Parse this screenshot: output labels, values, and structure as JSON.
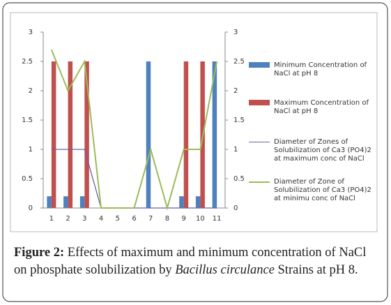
{
  "chart_data": {
    "type": "bar_line",
    "categories": [
      "1",
      "2",
      "3",
      "4",
      "5",
      "6",
      "7",
      "8",
      "9",
      "10",
      "11"
    ],
    "series": [
      {
        "name": "Minimum Concentration of NaCl at pH 8",
        "type": "bar",
        "color": "#4f81bd",
        "values": [
          0.2,
          0.2,
          0.2,
          0,
          0,
          0,
          2.5,
          0,
          0.2,
          0.2,
          2.5
        ]
      },
      {
        "name": "Maximum Concentration of NaCl at pH 8",
        "type": "bar",
        "color": "#c0504d",
        "values": [
          2.5,
          2.5,
          2.5,
          0,
          0,
          0,
          0,
          0,
          2.5,
          2.5,
          0
        ]
      },
      {
        "name": "Diameter of Zones of Solubilization of Ca3 (PO4)2 at maximum conc of NaCl",
        "type": "line",
        "axis": "y2",
        "color": "#6a5fa8",
        "values": [
          1,
          1,
          1,
          0,
          0,
          0,
          0,
          0,
          0,
          0,
          0
        ]
      },
      {
        "name": "Diameter of Zone of Solubilization of Ca3 (PO4)2 at minimu conc of NaCl",
        "type": "line",
        "axis": "y2",
        "color": "#9bbb59",
        "values": [
          2.7,
          2,
          2.5,
          0,
          0,
          0,
          1,
          0,
          1,
          1,
          2.5
        ]
      }
    ],
    "ylim": [
      0,
      3
    ],
    "yticks": [
      0,
      0.5,
      1,
      1.5,
      2,
      2.5,
      3
    ],
    "y2lim": [
      0,
      3
    ],
    "y2ticks": [
      0,
      0.5,
      1,
      1.5,
      2,
      2.5,
      3
    ],
    "legend": "right"
  },
  "caption": {
    "label": "Figure 2:",
    "text_1": "Effects of maximum and minimum concentration of NaCl on phosphate solubilization by",
    "species": "Bacillus circulance",
    "text_2": "Strains at pH 8."
  }
}
